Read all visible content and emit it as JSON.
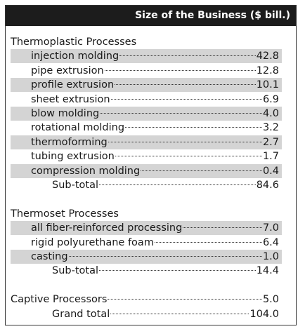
{
  "header": {
    "title": "Size of the Business ($ bill.)"
  },
  "sections": [
    {
      "title": "Thermoplastic Processes",
      "rows": [
        {
          "label": "injection molding",
          "value": "42.8"
        },
        {
          "label": "pipe extrusion",
          "value": "12.8"
        },
        {
          "label": "profile extrusion",
          "value": "10.1"
        },
        {
          "label": "sheet extrusion",
          "value": "6.9"
        },
        {
          "label": "blow molding",
          "value": "4.0"
        },
        {
          "label": "rotational molding",
          "value": "3.2"
        },
        {
          "label": "thermoforming",
          "value": "2.7"
        },
        {
          "label": "tubing extrusion",
          "value": "1.7"
        },
        {
          "label": "compression molding",
          "value": "0.4"
        }
      ],
      "subtotal": {
        "label": "Sub-total",
        "value": "84.6"
      }
    },
    {
      "title": "Thermoset Processes",
      "rows": [
        {
          "label": "all fiber-reinforced processing",
          "value": "7.0"
        },
        {
          "label": "rigid polyurethane foam",
          "value": "6.4"
        },
        {
          "label": "casting",
          "value": "1.0"
        }
      ],
      "subtotal": {
        "label": "Sub-total",
        "value": "14.4"
      }
    }
  ],
  "captive": {
    "label": "Captive Processors",
    "value": "5.0"
  },
  "grand_total": {
    "label": "Grand total",
    "value": "104.0"
  }
}
